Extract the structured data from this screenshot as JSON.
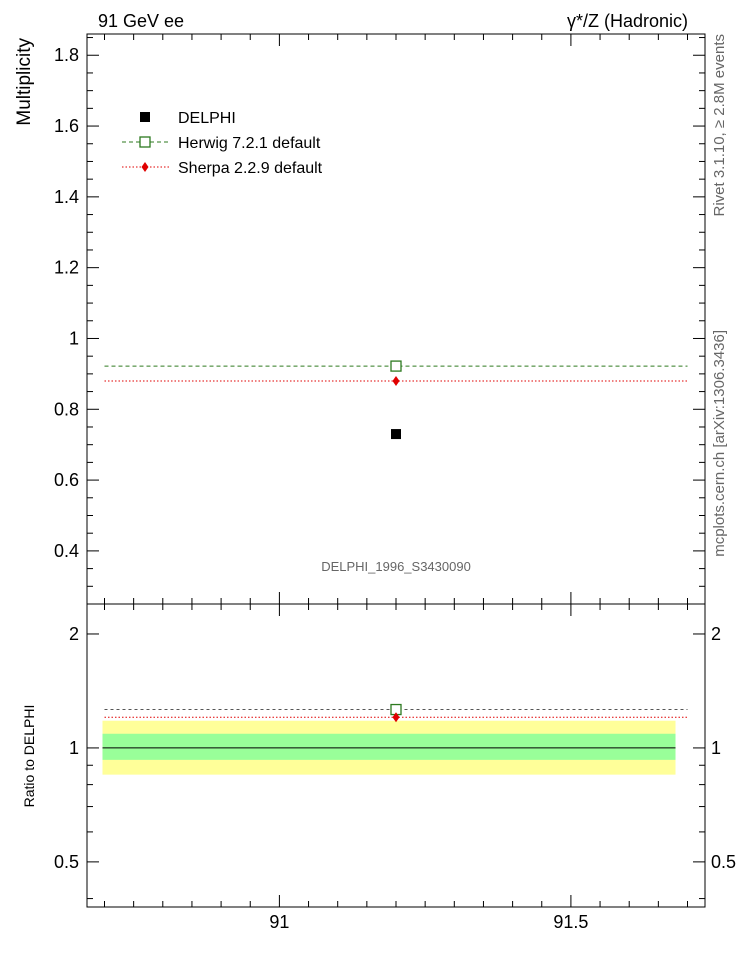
{
  "header": {
    "left": "91 GeV ee",
    "right": "γ*/Z (Hadronic)"
  },
  "side_labels": {
    "rivet": "Rivet 3.1.10, ≥ 2.8M events",
    "mcplots": "mcplots.cern.ch [arXiv:1306.3436]"
  },
  "watermark": "DELPHI_1996_S3430090",
  "chart_data": [
    {
      "type": "scatter",
      "ylabel": "Multiplicity",
      "xlim": [
        90.67,
        91.73
      ],
      "ylim": [
        0.25,
        1.86
      ],
      "yticks": [
        0.4,
        0.6,
        0.8,
        1,
        1.2,
        1.4,
        1.6,
        1.8
      ],
      "yticklabels": [
        "0.4",
        "0.6",
        "0.8",
        "1",
        "1.2",
        "1.4",
        "1.6",
        "1.8"
      ],
      "legend_position": "top-left",
      "series": [
        {
          "name": "DELPHI",
          "style": "data",
          "color": "#000000",
          "x": [
            91.2
          ],
          "y": [
            0.73
          ]
        },
        {
          "name": "Herwig 7.2.1 default",
          "style": "mc",
          "marker": "open-square",
          "line": "dashed",
          "color": "#2d7a1f",
          "x": [
            91.2
          ],
          "y": [
            0.922
          ],
          "x_range": [
            90.7,
            91.7
          ]
        },
        {
          "name": "Sherpa 2.2.9 default",
          "style": "mc",
          "marker": "diamond",
          "line": "dotted",
          "color": "#e00000",
          "x": [
            91.2
          ],
          "y": [
            0.88
          ],
          "x_range": [
            90.7,
            91.7
          ]
        }
      ]
    },
    {
      "type": "scatter",
      "ylabel": "Ratio to DELPHI",
      "xlim": [
        90.67,
        91.73
      ],
      "ylim": [
        0.38,
        2.4
      ],
      "yscale": "log",
      "yticks": [
        0.5,
        1,
        2
      ],
      "yticklabels": [
        "0.5",
        "1",
        "2"
      ],
      "xticks": [
        91,
        91.5
      ],
      "xticklabels": [
        "91",
        "91.5"
      ],
      "bands": [
        {
          "name": "total uncertainty",
          "color": "#ffff99",
          "low": 0.85,
          "high": 1.18
        },
        {
          "name": "stat uncertainty",
          "color": "#99ff99",
          "low": 0.93,
          "high": 1.09
        }
      ],
      "reference": 1,
      "series": [
        {
          "name": "Herwig 7.2.1 default",
          "color": "#2d7a1f",
          "x": [
            91.2
          ],
          "y": [
            1.263
          ]
        },
        {
          "name": "Sherpa 2.2.9 default",
          "color": "#e00000",
          "x": [
            91.2
          ],
          "y": [
            1.205
          ]
        }
      ]
    }
  ]
}
